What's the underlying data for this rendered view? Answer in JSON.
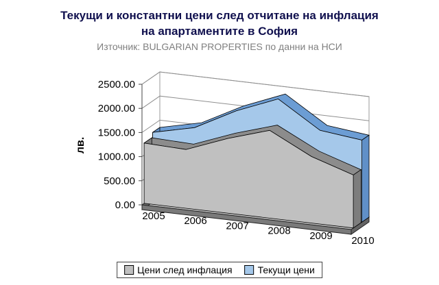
{
  "header": {
    "title_line1": "Текущи и константни цени след отчитане на инфлация",
    "title_line2": "на апартаментите в София",
    "subtitle": "Източник: BULGARIAN PROPERTIES по данни на НСИ",
    "title_color": "#10104E",
    "subtitle_color": "#7F7F7F"
  },
  "chart_data": {
    "type": "area",
    "style": "3d",
    "title": "Текущи и константни цени след отчитане на инфлация на апартаментите в София",
    "subtitle": "Източник: BULGARIAN PROPERTIES по данни на НСИ",
    "categories": [
      "2005",
      "2006",
      "2007",
      "2008",
      "2009",
      "2010"
    ],
    "series": [
      {
        "name": "Цени след инфлация",
        "values": [
          1250,
          1220,
          1550,
          1820,
          1380,
          1100
        ],
        "face_color": "#C0C0C0",
        "top_color": "#8C8C8C",
        "side_color": "#7D7D7D"
      },
      {
        "name": "Текущи цени",
        "values": [
          1350,
          1550,
          2000,
          2350,
          1800,
          1700
        ],
        "face_color": "#A5C8EA",
        "top_color": "#6C9DD4",
        "side_color": "#6090C8"
      }
    ],
    "ylabel": "лв.",
    "ylim": [
      0,
      2500
    ],
    "ytick_interval": 500,
    "ytick_labels": [
      "0.00",
      "500.00",
      "1000.00",
      "1500.00",
      "2000.00",
      "2500.00"
    ],
    "gridlines": true,
    "legend_position": "bottom"
  },
  "legend": {
    "entries": [
      {
        "label": "Цени след инфлация",
        "swatch_color": "#C0C0C0"
      },
      {
        "label": "Текущи цени",
        "swatch_color": "#A5C8EA"
      }
    ]
  }
}
